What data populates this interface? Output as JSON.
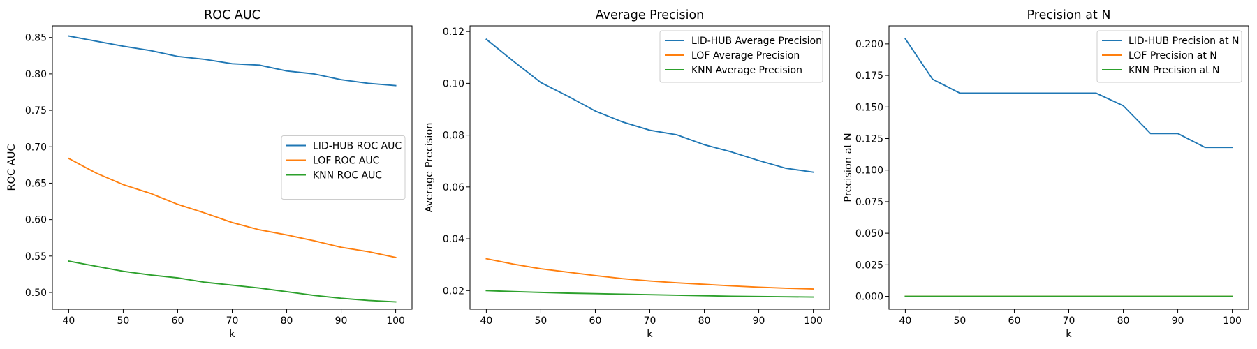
{
  "chart_data": [
    {
      "type": "line",
      "title": "ROC AUC",
      "xlabel": "k",
      "ylabel": "ROC AUC",
      "x": [
        40,
        45,
        50,
        55,
        60,
        65,
        70,
        75,
        80,
        85,
        90,
        95,
        100
      ],
      "xlim": [
        37,
        103
      ],
      "ylim": [
        0.477,
        0.866
      ],
      "xticks": [
        40,
        50,
        60,
        70,
        80,
        90,
        100
      ],
      "yticks": [
        0.5,
        0.55,
        0.6,
        0.65,
        0.7,
        0.75,
        0.8,
        0.85
      ],
      "ytick_decimals": 2,
      "legend_position": "center-right",
      "series": [
        {
          "name": "LID-HUB ROC AUC",
          "color": "#1f77b4",
          "values": [
            0.852,
            0.845,
            0.838,
            0.832,
            0.824,
            0.82,
            0.814,
            0.812,
            0.804,
            0.8,
            0.792,
            0.787,
            0.784
          ]
        },
        {
          "name": "LOF ROC AUC",
          "color": "#ff7f0e",
          "values": [
            0.684,
            0.664,
            0.648,
            0.636,
            0.621,
            0.609,
            0.596,
            0.586,
            0.579,
            0.571,
            0.562,
            0.556,
            0.548
          ]
        },
        {
          "name": "KNN ROC AUC",
          "color": "#2ca02c",
          "values": [
            0.543,
            0.536,
            0.529,
            0.524,
            0.52,
            0.514,
            0.51,
            0.506,
            0.501,
            0.496,
            0.492,
            0.489,
            0.487
          ]
        }
      ]
    },
    {
      "type": "line",
      "title": "Average Precision",
      "xlabel": "k",
      "ylabel": "Average Precision",
      "x": [
        40,
        45,
        50,
        55,
        60,
        65,
        70,
        75,
        80,
        85,
        90,
        95,
        100
      ],
      "xlim": [
        37,
        103
      ],
      "ylim": [
        0.0128,
        0.1222
      ],
      "xticks": [
        40,
        50,
        60,
        70,
        80,
        90,
        100
      ],
      "yticks": [
        0.02,
        0.04,
        0.06,
        0.08,
        0.1,
        0.12
      ],
      "ytick_decimals": 2,
      "legend_position": "upper right",
      "series": [
        {
          "name": "LID-HUB Average Precision",
          "color": "#1f77b4",
          "values": [
            0.117,
            0.1085,
            0.1003,
            0.095,
            0.0893,
            0.0851,
            0.0819,
            0.0801,
            0.0763,
            0.0735,
            0.0702,
            0.0672,
            0.0657
          ]
        },
        {
          "name": "LOF Average Precision",
          "color": "#ff7f0e",
          "values": [
            0.0323,
            0.0302,
            0.0284,
            0.0271,
            0.0258,
            0.0246,
            0.0237,
            0.023,
            0.0224,
            0.0218,
            0.0213,
            0.0209,
            0.0206
          ]
        },
        {
          "name": "KNN Average Precision",
          "color": "#2ca02c",
          "values": [
            0.02,
            0.0196,
            0.0193,
            0.019,
            0.0188,
            0.0186,
            0.0184,
            0.0182,
            0.018,
            0.0178,
            0.0177,
            0.0176,
            0.0175
          ]
        }
      ]
    },
    {
      "type": "line",
      "title": "Precision at N",
      "xlabel": "k",
      "ylabel": "Precision at N",
      "x": [
        40,
        45,
        50,
        55,
        60,
        65,
        70,
        75,
        80,
        85,
        90,
        95,
        100
      ],
      "xlim": [
        37,
        103
      ],
      "ylim": [
        -0.0102,
        0.2143
      ],
      "xticks": [
        40,
        50,
        60,
        70,
        80,
        90,
        100
      ],
      "yticks": [
        0.0,
        0.025,
        0.05,
        0.075,
        0.1,
        0.125,
        0.15,
        0.175,
        0.2
      ],
      "ytick_decimals": 3,
      "legend_position": "upper right",
      "series": [
        {
          "name": "LID-HUB Precision at N",
          "color": "#1f77b4",
          "values": [
            0.204,
            0.172,
            0.161,
            0.161,
            0.161,
            0.161,
            0.161,
            0.161,
            0.151,
            0.129,
            0.129,
            0.118,
            0.118
          ]
        },
        {
          "name": "LOF Precision at N",
          "color": "#ff7f0e",
          "values": [
            0,
            0,
            0,
            0,
            0,
            0,
            0,
            0,
            0,
            0,
            0,
            0,
            0
          ]
        },
        {
          "name": "KNN Precision at N",
          "color": "#2ca02c",
          "values": [
            0,
            0,
            0,
            0,
            0,
            0,
            0,
            0,
            0,
            0,
            0,
            0,
            0
          ]
        }
      ]
    }
  ]
}
